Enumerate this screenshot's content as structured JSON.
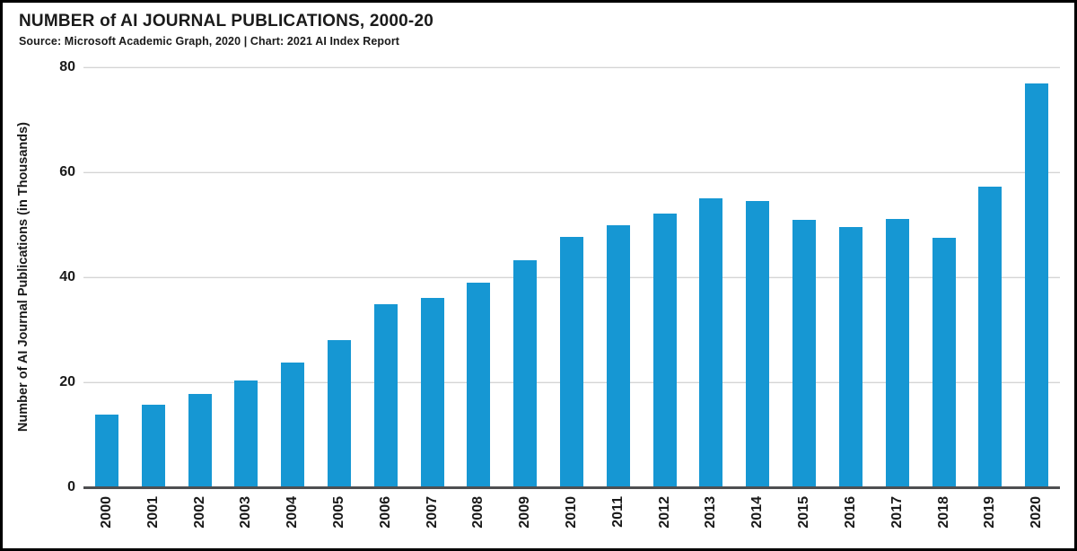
{
  "header": {
    "title": "NUMBER of AI JOURNAL PUBLICATIONS, 2000-20",
    "subtitle": "Source: Microsoft Academic Graph, 2020 | Chart: 2021 AI Index Report"
  },
  "chart_data": {
    "type": "bar",
    "title": "NUMBER of AI JOURNAL PUBLICATIONS, 2000-20",
    "subtitle": "Source: Microsoft Academic Graph, 2020 | Chart: 2021 AI Index Report",
    "categories": [
      "2000",
      "2001",
      "2002",
      "2003",
      "2004",
      "2005",
      "2006",
      "2007",
      "2008",
      "2009",
      "2010",
      "2011",
      "2012",
      "2013",
      "2014",
      "2015",
      "2016",
      "2017",
      "2018",
      "2019",
      "2020"
    ],
    "values": [
      13.9,
      15.8,
      17.8,
      20.4,
      23.7,
      28.0,
      34.9,
      36.1,
      39.0,
      43.2,
      47.7,
      49.9,
      52.1,
      55.1,
      54.6,
      51.0,
      49.6,
      51.1,
      47.6,
      57.3,
      77.0
    ],
    "ylabel": "Number of AI Journal Publications (in Thousands)",
    "ylim": [
      0,
      80
    ],
    "yticks": [
      0,
      20,
      40,
      60,
      80
    ],
    "grid": true,
    "legend": "none"
  },
  "colors": {
    "bar": "#1697d3",
    "gridline": "#c6c6c6",
    "baseline": "#4e4f51",
    "text": "#1a1a1a",
    "frame": "#000000"
  }
}
